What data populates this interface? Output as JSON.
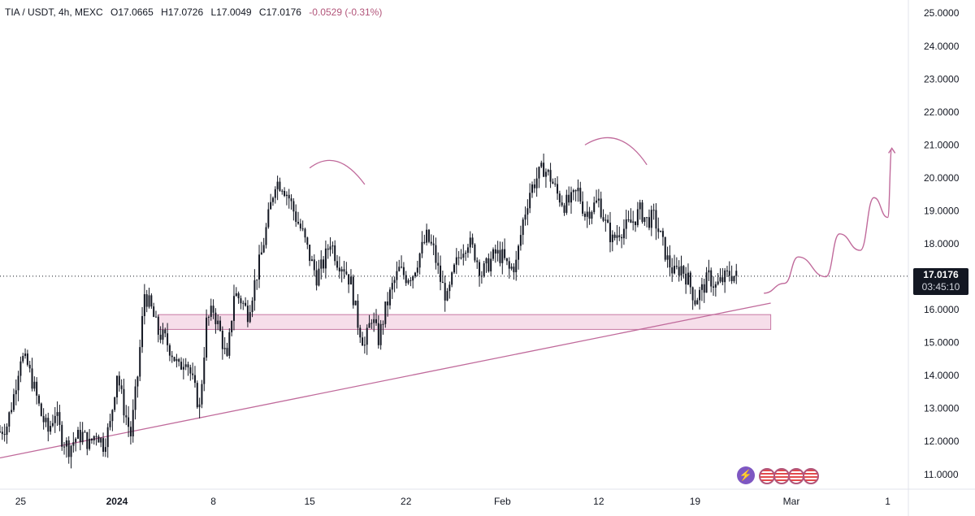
{
  "legend": {
    "symbol": "TIA / USDT, 4h, MEXC",
    "open": "O17.0665",
    "high": "H17.0726",
    "low": "L17.0049",
    "close": "C17.0176",
    "change": "-0.0529 (-0.31%)"
  },
  "price_badge": {
    "price": "17.0176",
    "countdown": "03:45:10"
  },
  "icons": {
    "bolt": "lightning-icon",
    "flags": "us-flag-icon"
  },
  "colors": {
    "candle": "#131722",
    "annotation": "#c06a9b",
    "zone_fill": "#f6dbe8",
    "zone_stroke": "#c06a9b"
  },
  "chart_data": {
    "type": "candlestick",
    "title": "TIA / USDT, 4h, MEXC",
    "ylim": [
      10.6,
      25.4
    ],
    "y_ticks": [
      "25.0000",
      "24.0000",
      "23.0000",
      "22.0000",
      "21.0000",
      "20.0000",
      "19.0000",
      "18.0000",
      "17.0000",
      "16.0000",
      "15.0000",
      "14.0000",
      "13.0000",
      "12.0000",
      "11.0000"
    ],
    "x_ticks": [
      "25",
      "2024",
      "8",
      "15",
      "22",
      "Feb",
      "12",
      "19",
      "Mar",
      "1"
    ],
    "x_tick_pos": [
      -7,
      0,
      7,
      14,
      21,
      28,
      35,
      42,
      49,
      56
    ],
    "xlim": [
      -8.5,
      57.5
    ],
    "last_price": 17.0176,
    "price_series": {
      "day": [
        -8.5,
        -8,
        -7.5,
        -7,
        -6.5,
        -6,
        -5.5,
        -5,
        -4.5,
        -4,
        -3.5,
        -3,
        -2.5,
        -2,
        -1.5,
        -1,
        -0.5,
        0,
        0.5,
        1,
        1.5,
        2,
        2.5,
        3,
        3.5,
        4,
        4.5,
        5,
        5.5,
        6,
        6.5,
        7,
        7.5,
        8,
        8.5,
        9,
        9.5,
        10,
        10.5,
        11,
        11.5,
        12,
        12.5,
        13,
        13.5,
        14,
        14.5,
        15,
        15.5,
        16,
        16.5,
        17,
        17.5,
        18,
        18.5,
        19,
        19.5,
        20,
        20.5,
        21,
        21.5,
        22,
        22.5,
        23,
        23.5,
        24,
        24.5,
        25,
        25.5,
        26,
        26.5,
        27,
        27.5,
        28,
        28.5,
        29,
        29.5,
        30,
        30.5,
        31,
        31.5,
        32,
        32.5,
        33,
        33.5,
        34,
        34.5,
        35,
        35.5,
        36,
        36.5,
        37,
        37.5,
        38,
        38.5,
        39,
        39.5,
        40,
        40.5,
        41,
        41.5,
        42,
        42.5,
        43,
        43.5,
        44,
        44.5,
        45,
        45.5,
        46,
        46.5,
        47,
        47.5
      ],
      "close": [
        12.3,
        12.5,
        13.4,
        14.6,
        14.3,
        13.6,
        12.8,
        12.3,
        12.9,
        12.1,
        11.8,
        12.1,
        12.2,
        11.9,
        12.3,
        11.9,
        12.5,
        14.1,
        13.0,
        12.2,
        14.0,
        16.5,
        16.0,
        15.3,
        15.1,
        14.7,
        14.2,
        14.6,
        13.8,
        13.0,
        15.6,
        16.0,
        15.3,
        14.4,
        16.5,
        16.3,
        15.9,
        16.8,
        17.7,
        18.8,
        19.9,
        19.8,
        19.4,
        18.8,
        18.3,
        17.6,
        17.0,
        17.4,
        18.1,
        17.5,
        17.3,
        16.8,
        15.6,
        14.9,
        15.8,
        15.1,
        16.0,
        16.7,
        17.2,
        17.0,
        17.1,
        17.7,
        18.2,
        17.8,
        16.9,
        16.3,
        17.2,
        17.8,
        18.1,
        17.7,
        17.1,
        17.4,
        17.7,
        17.6,
        17.2,
        17.4,
        18.7,
        19.6,
        20.0,
        20.3,
        20.0,
        19.5,
        19.2,
        19.3,
        19.6,
        18.9,
        19.1,
        19.3,
        18.6,
        18.1,
        18.4,
        18.5,
        18.7,
        19.0,
        18.7,
        18.8,
        18.2,
        17.5,
        17.1,
        17.3,
        16.9,
        16.3,
        16.6,
        17.0,
        16.7,
        16.9,
        17.1,
        17.0
      ],
      "interpolation": "linear"
    },
    "support_zone": {
      "from_day": 3.0,
      "to_day": 47.5,
      "low": 15.4,
      "high": 15.85
    },
    "trendline": {
      "start": [
        -8.5,
        11.5
      ],
      "end": [
        47.5,
        16.2
      ]
    },
    "projection": [
      [
        47.0,
        16.5
      ],
      [
        48.5,
        16.8
      ],
      [
        49.5,
        17.6
      ],
      [
        51.5,
        17.0
      ],
      [
        52.5,
        18.3
      ],
      [
        54.0,
        17.8
      ],
      [
        55.0,
        19.4
      ],
      [
        56.0,
        18.8
      ],
      [
        56.3,
        20.9
      ]
    ],
    "arcs": [
      {
        "from": [
          14.0,
          20.3
        ],
        "peak": [
          16.0,
          20.5
        ],
        "to": [
          18.0,
          19.8
        ]
      },
      {
        "from": [
          34.0,
          21.0
        ],
        "peak": [
          36.5,
          21.2
        ],
        "to": [
          38.5,
          20.4
        ]
      }
    ],
    "grid": false
  }
}
